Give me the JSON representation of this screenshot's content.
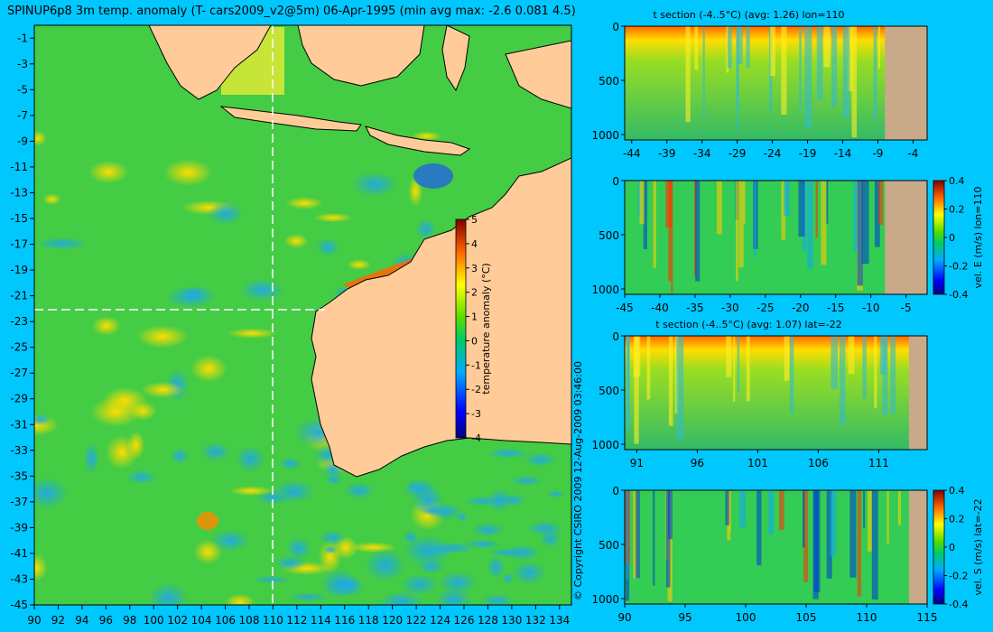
{
  "main_map": {
    "title": "SPINUP6p8 3m temp. anomaly (T- cars2009_v2@5m) 06-Apr-1995 (min avg max: -2.6 0.081 4.5)",
    "colorbar_label": "temperature anomaly (°C)",
    "colorbar_ticks": [
      "5",
      "4",
      "3",
      "2",
      "1",
      "0",
      "-1",
      "-2",
      "-3",
      "-4"
    ],
    "x_ticks": [
      "90",
      "92",
      "94",
      "96",
      "98",
      "100",
      "102",
      "104",
      "106",
      "108",
      "110",
      "112",
      "114",
      "116",
      "118",
      "120",
      "122",
      "124",
      "126",
      "128",
      "130",
      "132",
      "134"
    ],
    "y_ticks": [
      "-1",
      "-3",
      "-5",
      "-7",
      "-9",
      "-11",
      "-13",
      "-15",
      "-17",
      "-19",
      "-21",
      "-23",
      "-25",
      "-27",
      "-29",
      "-31",
      "-33",
      "-35",
      "-37",
      "-39",
      "-41",
      "-43",
      "-45"
    ],
    "section_line_lon": 110,
    "section_line_lat": -22
  },
  "copyright": "© Copyright CSIRO 2009   12-Aug-2009 03:46:00",
  "colors": {
    "background": "#00c8ff",
    "land": "#ffcc99",
    "section_land": "#c8aa88"
  },
  "chart_data": [
    {
      "type": "heatmap",
      "title": "SPINUP6p8 3m temp. anomaly (T- cars2009_v2@5m) 06-Apr-1995 (min avg max: -2.6 0.081 4.5)",
      "xlim": [
        90,
        135
      ],
      "ylim": [
        -45,
        0
      ],
      "x_ticks": [
        90,
        92,
        94,
        96,
        98,
        100,
        102,
        104,
        106,
        108,
        110,
        112,
        114,
        116,
        118,
        120,
        122,
        124,
        126,
        128,
        130,
        132,
        134
      ],
      "y_ticks": [
        -1,
        -3,
        -5,
        -7,
        -9,
        -11,
        -13,
        -15,
        -17,
        -19,
        -21,
        -23,
        -25,
        -27,
        -29,
        -31,
        -33,
        -35,
        -37,
        -39,
        -41,
        -43,
        -45
      ],
      "colorbar": {
        "label": "temperature anomaly (°C)",
        "range": [
          -4,
          5
        ]
      },
      "min": -2.6,
      "avg": 0.081,
      "max": 4.5
    },
    {
      "type": "heatmap",
      "title": "t section (-4..5°C) (avg: 1.26) lon=110",
      "x_ticks": [
        -44,
        -39,
        -34,
        -29,
        -24,
        -19,
        -14,
        -9,
        -4
      ],
      "y_ticks": [
        0,
        500,
        1000
      ],
      "xlim": [
        -45,
        -2
      ],
      "ylim": [
        1050,
        0
      ]
    },
    {
      "type": "heatmap",
      "title": "",
      "x_ticks": [
        -45,
        -40,
        -35,
        -30,
        -25,
        -20,
        -15,
        -10,
        -5
      ],
      "y_ticks": [
        0,
        500,
        1000
      ],
      "xlim": [
        -45,
        -2
      ],
      "ylim": [
        1050,
        0
      ],
      "colorbar": {
        "label": "vel. E (m/s) lon=110",
        "ticks": [
          "0.4",
          "0.2",
          "0",
          "-0.2",
          "-0.4"
        ],
        "range": [
          -0.4,
          0.4
        ]
      }
    },
    {
      "type": "heatmap",
      "title": "t section (-4..5°C) (avg: 1.07) lat=-22",
      "x_ticks": [
        91,
        96,
        101,
        106,
        111
      ],
      "y_ticks": [
        0,
        500,
        1000
      ],
      "xlim": [
        90,
        115
      ],
      "ylim": [
        1050,
        0
      ]
    },
    {
      "type": "heatmap",
      "title": "",
      "x_ticks": [
        90,
        95,
        100,
        105,
        110,
        115
      ],
      "y_ticks": [
        0,
        500,
        1000
      ],
      "xlim": [
        90,
        115
      ],
      "ylim": [
        1050,
        0
      ],
      "colorbar": {
        "label": "vel. S (m/s) lat=-22",
        "ticks": [
          "0.4",
          "0.2",
          "0",
          "-0.2",
          "-0.4"
        ],
        "range": [
          -0.4,
          0.4
        ]
      }
    }
  ]
}
